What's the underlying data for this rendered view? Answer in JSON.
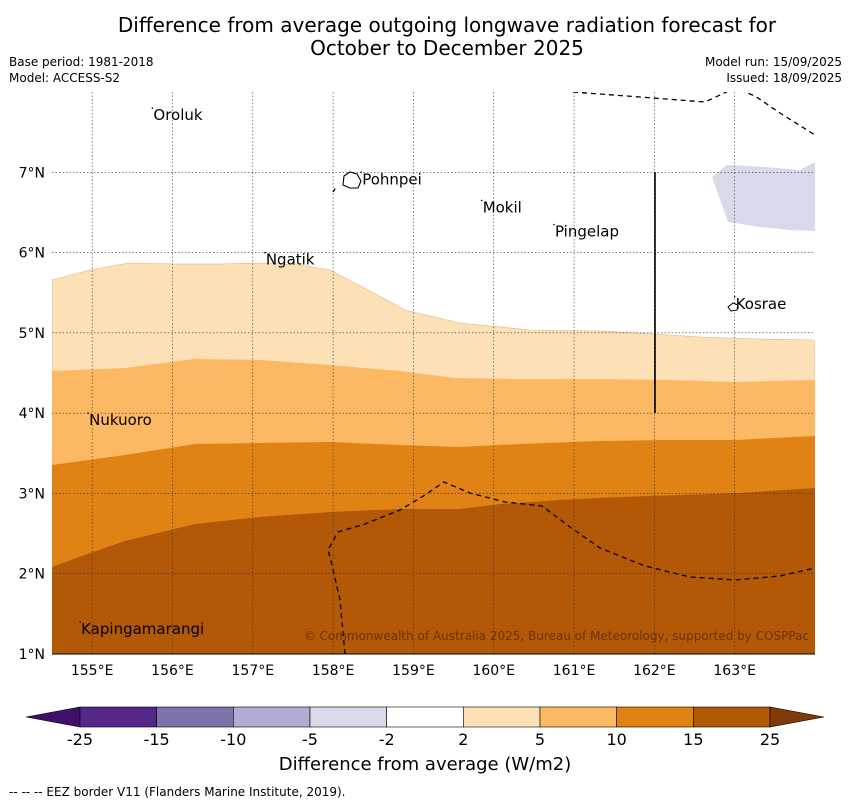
{
  "header": {
    "title_line1": "Difference from average outgoing longwave radiation forecast for",
    "title_line2": "October to December 2025",
    "base_period": "Base period: 1981-2018",
    "model": "Model: ACCESS-S2",
    "model_run": "Model run: 15/09/2025",
    "issued": "Issued: 18/09/2025"
  },
  "map": {
    "lon_range": [
      154.5,
      164.0
    ],
    "lat_range": [
      1.0,
      8.0
    ],
    "lon_ticks": [
      "155°E",
      "156°E",
      "157°E",
      "158°E",
      "159°E",
      "160°E",
      "161°E",
      "162°E",
      "163°E"
    ],
    "lat_ticks": [
      "7°N",
      "6°N",
      "5°N",
      "4°N",
      "3°N",
      "2°N",
      "1°N"
    ],
    "grid": true,
    "places": [
      {
        "name": "Oroluk",
        "lon": 155.75,
        "lat": 7.65
      },
      {
        "name": "Pohnpei",
        "lon": 158.35,
        "lat": 6.85
      },
      {
        "name": "Mokil",
        "lon": 159.85,
        "lat": 6.5
      },
      {
        "name": "Pingelap",
        "lon": 160.75,
        "lat": 6.2
      },
      {
        "name": "Ngatik",
        "lon": 157.15,
        "lat": 5.85
      },
      {
        "name": "Kosrae",
        "lon": 163.0,
        "lat": 5.3
      },
      {
        "name": "Nukuoro",
        "lon": 154.95,
        "lat": 3.85
      },
      {
        "name": "Kapingamarangi",
        "lon": 154.85,
        "lat": 1.25
      }
    ],
    "copyright": "© Commonwealth of Australia 2025, Bureau of Meteorology, supported by COSPPac"
  },
  "colorbar": {
    "ticks": [
      "-25",
      "-15",
      "-10",
      "-5",
      "-2",
      "2",
      "5",
      "10",
      "15",
      "25"
    ],
    "colors": [
      "#3f0f6b",
      "#542788",
      "#8073ac",
      "#b2abd2",
      "#d8daeb",
      "#ffffff",
      "#fee0b6",
      "#fdb863",
      "#e08214",
      "#b35806",
      "#7f3b08"
    ],
    "title": "Difference from average (W/m2)"
  },
  "legend": {
    "eez_note": "-- -- -- EEZ border V11 (Flanders Marine Institute, 2019)."
  }
}
